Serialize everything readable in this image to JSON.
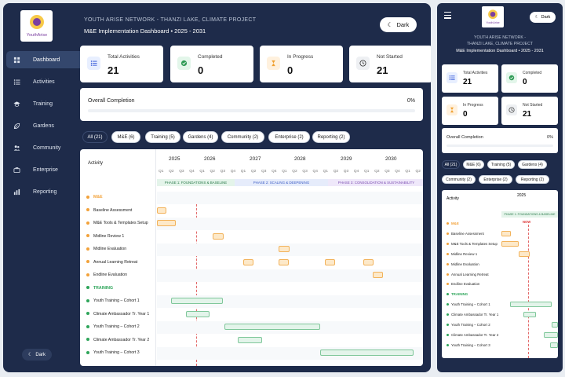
{
  "header": {
    "subtitle": "YOUTH ARISE NETWORK - THANZI LAKE, CLIMATE PROJECT",
    "title": "M&E Implementation Dashboard • 2025 - 2031",
    "dark_label": "Dark"
  },
  "logo": {
    "text": "YouthArise"
  },
  "sidebar": {
    "items": [
      {
        "label": "Dashboard",
        "icon": "grid-icon",
        "active": true
      },
      {
        "label": "Activities",
        "icon": "list-icon"
      },
      {
        "label": "Training",
        "icon": "graduation-cap-icon"
      },
      {
        "label": "Gardens",
        "icon": "leaf-icon"
      },
      {
        "label": "Community",
        "icon": "users-icon"
      },
      {
        "label": "Enterprise",
        "icon": "briefcase-icon"
      },
      {
        "label": "Reporting",
        "icon": "bar-chart-icon"
      }
    ],
    "dark_label": "Dark"
  },
  "stats": [
    {
      "label": "Total Activities",
      "value": "21",
      "icon": "list-icon",
      "color": "#e8efff"
    },
    {
      "label": "Completed",
      "value": "0",
      "icon": "check-circle-icon",
      "color": "#e3f6ea"
    },
    {
      "label": "In Progress",
      "value": "0",
      "icon": "hourglass-icon",
      "color": "#fff1de"
    },
    {
      "label": "Not Started",
      "value": "21",
      "icon": "clock-icon",
      "color": "#eef0f3"
    }
  ],
  "completion": {
    "label": "Overall Completion",
    "value": "0%",
    "fraction": 0
  },
  "filters": [
    "All (21)",
    "M&E (6)",
    "Training (5)",
    "Gardens (4)",
    "Community (2)",
    "Enterprise (2)",
    "Reporting (2)"
  ],
  "gantt": {
    "activity_header": "Activity",
    "years": [
      "2025",
      "2026",
      "2027",
      "2028",
      "2029",
      "2030"
    ],
    "quarters": [
      "Q1",
      "Q2",
      "Q3",
      "Q4"
    ],
    "phases": [
      "PHASE 1: FOUNDATIONS & BASELINE",
      "PHASE 2: SCALING & DEEPENING",
      "PHASE 3: CONSOLIDATION & SUSTAINABILITY"
    ],
    "now_label": "NOW",
    "rows": [
      {
        "label": "M&E",
        "group": true,
        "color": "#f2a23a"
      },
      {
        "label": "Baseline Assessment",
        "color": "#f2a23a",
        "bars": [
          [
            0,
            0.9
          ]
        ],
        "kind": "orange"
      },
      {
        "label": "M&E Tools & Templates Setup",
        "color": "#f2a23a",
        "bars": [
          [
            0,
            1.8
          ]
        ],
        "kind": "orange"
      },
      {
        "label": "Midline Review 1",
        "color": "#f2a23a",
        "bars": [
          [
            5.4,
            6.5
          ]
        ],
        "kind": "orange"
      },
      {
        "label": "Midline Evaluation",
        "color": "#f2a23a",
        "bars": [
          [
            11.8,
            12.9
          ]
        ],
        "kind": "orange"
      },
      {
        "label": "Annual Learning Retreat",
        "color": "#f2a23a",
        "bars": [
          [
            8.4,
            9.4
          ],
          [
            11.8,
            12.8
          ],
          [
            16.3,
            17.3
          ],
          [
            20.1,
            21.1
          ]
        ],
        "kind": "orange"
      },
      {
        "label": "Endline Evaluation",
        "color": "#f2a23a",
        "bars": [
          [
            21,
            22
          ]
        ],
        "kind": "orange"
      },
      {
        "label": "TRAINING",
        "group": true,
        "color": "#2ea55a"
      },
      {
        "label": "Youth Training – Cohort 1",
        "color": "#2ea55a",
        "bars": [
          [
            1.4,
            6.4
          ]
        ],
        "kind": "green"
      },
      {
        "label": "Climate Ambassador Tr. Year 1",
        "color": "#2ea55a",
        "bars": [
          [
            2.8,
            5.1
          ]
        ],
        "kind": "green"
      },
      {
        "label": "Youth Training – Cohort 2",
        "color": "#2ea55a",
        "bars": [
          [
            6.6,
            15.9
          ]
        ],
        "kind": "green"
      },
      {
        "label": "Climate Ambassador Tr. Year 2",
        "color": "#2ea55a",
        "bars": [
          [
            7.9,
            10.2
          ]
        ],
        "kind": "green"
      },
      {
        "label": "Youth Training – Cohort 3",
        "color": "#2ea55a",
        "bars": [
          [
            15.9,
            25
          ]
        ],
        "kind": "green"
      }
    ]
  },
  "mobile": {
    "subtitle": "YOUTH ARISE NETWORK -",
    "subtitle2": "THANZI LAKE, CLIMATE PROJECT",
    "title": "M&E Implementation Dashboard • 2025 - 2031",
    "dark_label": "Dark",
    "rows": [
      "M&E",
      "Baseline Assessment",
      "M&E Tools & Templates Setup",
      "Midline Review 1",
      "Midline Evaluation",
      "Annual Learning Retreat",
      "Endline Evaluation",
      "TRAINING",
      "Youth Training – Cohort 1",
      "Climate Ambassador Tr. Year 1",
      "Youth Training – Cohort 2",
      "Climate Ambassador Tr. Year 2",
      "Youth Training – Cohort 3"
    ],
    "year": "2025",
    "phase1": "PHASE 1: FOUNDATIONS & BASELINE",
    "now_label": "NOW",
    "filters": [
      "All (21)",
      "M&E (6)",
      "Training (5)",
      "Gardens (4)",
      "Community (2)",
      "Enterprise (2)",
      "Reporting (2)"
    ]
  }
}
